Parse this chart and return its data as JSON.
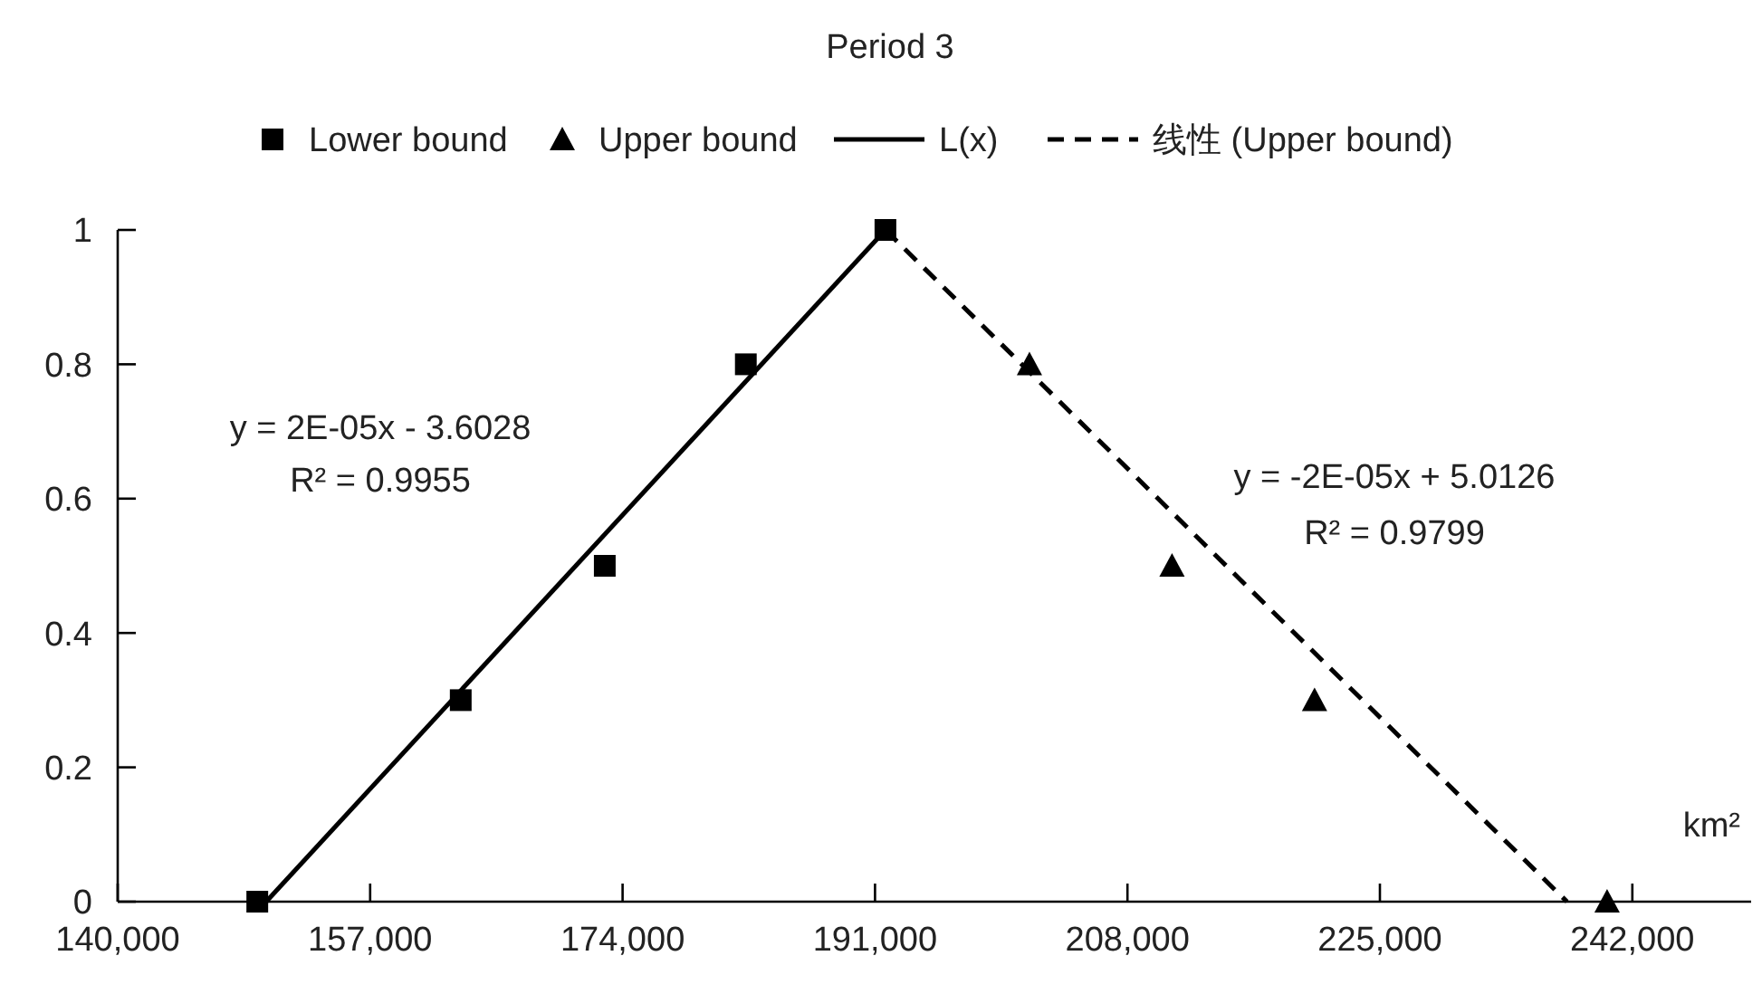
{
  "chart_data": {
    "type": "scatter",
    "title": "Period 3",
    "xlabel": "km²",
    "xlim": [
      140000,
      250000
    ],
    "xticks": [
      {
        "value": 140000,
        "label": "140,000"
      },
      {
        "value": 157000,
        "label": "157,000"
      },
      {
        "value": 174000,
        "label": "174,000"
      },
      {
        "value": 191000,
        "label": "191,000"
      },
      {
        "value": 208000,
        "label": "208,000"
      },
      {
        "value": 225000,
        "label": "225,000"
      },
      {
        "value": 242000,
        "label": "242,000"
      }
    ],
    "ylim": [
      0,
      1
    ],
    "yticks": [
      0,
      0.2,
      0.4,
      0.6,
      0.8,
      1
    ],
    "grid": false,
    "legend": "top",
    "series": [
      {
        "name": "Lower bound",
        "marker": "square",
        "color": "#000000",
        "x": [
          149400,
          163100,
          172800,
          182300,
          191700
        ],
        "values": [
          0,
          0.3,
          0.5,
          0.8,
          1
        ]
      },
      {
        "name": "Upper bound",
        "marker": "triangle",
        "color": "#000000",
        "x": [
          201400,
          211000,
          220600,
          240300
        ],
        "values": [
          0.8,
          0.5,
          0.3,
          0
        ]
      },
      {
        "name": "L(x)",
        "type": "line",
        "marker": "none",
        "line_style": "solid",
        "color": "#000000",
        "x": [
          150000,
          191700
        ],
        "values": [
          0,
          1
        ]
      },
      {
        "name": "线性 (Upper bound)",
        "type": "line",
        "marker": "none",
        "line_style": "dashed",
        "color": "#000000",
        "x": [
          191700,
          237600
        ],
        "values": [
          1,
          0
        ]
      }
    ],
    "annotations": [
      "y = 2E-05x - 3.6028",
      "R² = 0.9955",
      "y = -2E-05x + 5.0126",
      "R² = 0.9799"
    ]
  }
}
